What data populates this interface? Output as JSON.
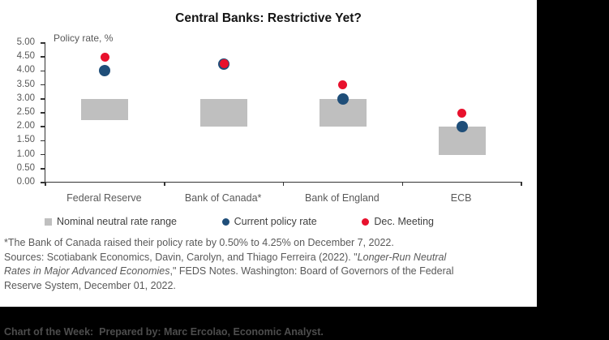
{
  "title": "Central Banks: Restrictive Yet?",
  "chart_data": {
    "type": "scatter",
    "title": "Central Banks: Restrictive Yet?",
    "ylabel": "Policy rate, %",
    "ylim": [
      0,
      5
    ],
    "ytick_step": 0.5,
    "ytick_decimals": 2,
    "grid": false,
    "legend_position": "bottom",
    "categories": [
      "Federal Reserve",
      "Bank of Canada*",
      "Bank of England",
      "ECB"
    ],
    "series": [
      {
        "name": "Nominal neutral rate range",
        "type": "range_bar",
        "color": "#bfbfbf",
        "ranges": [
          [
            2.25,
            3.0
          ],
          [
            2.0,
            3.0
          ],
          [
            2.0,
            3.0
          ],
          [
            1.0,
            2.0
          ]
        ]
      },
      {
        "name": "Current policy rate",
        "type": "point",
        "color": "#1f4e79",
        "values": [
          4.0,
          4.25,
          3.0,
          2.0
        ]
      },
      {
        "name": "Dec. Meeting",
        "type": "point",
        "color": "#e8112d",
        "values": [
          4.5,
          4.25,
          3.5,
          2.5
        ]
      }
    ]
  },
  "footnote": {
    "line1": "*The Bank of Canada raised their policy rate by 0.50% to 4.25% on December 7, 2022.",
    "line2_plain": "Sources: Scotiabank Economics, Davin, Carolyn, and Thiago Ferreira (2022). \"",
    "line2_italic": "Longer-Run Neutral",
    "line3_italic": "Rates in Major Advanced Economies",
    "line3_plain": ",\" FEDS Notes. Washington: Board of Governors of the Federal",
    "line4": "Reserve System, December 01, 2022."
  },
  "footer": {
    "text": "Chart of the Week:  Prepared by: Marc Ercolao, Economic Analyst."
  },
  "colors": {
    "neutral_range_bar": "#bfbfbf",
    "current_policy_rate": "#1f4e79",
    "dec_meeting": "#e8112d",
    "axis": "#333333",
    "axis_labels": "#595959",
    "footer_background": "#000000",
    "footer_text": "#4d4d4d"
  }
}
